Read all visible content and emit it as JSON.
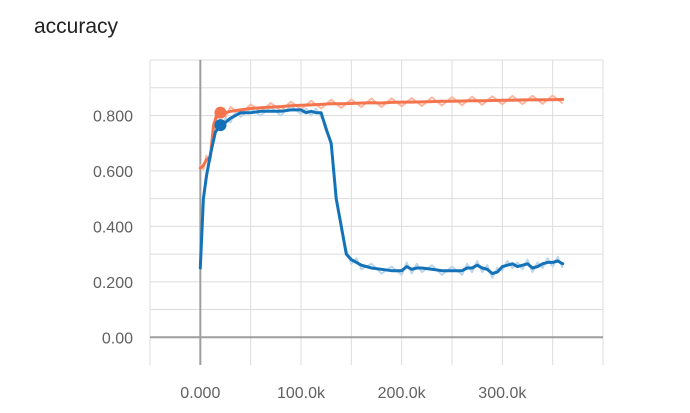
{
  "chart_data": {
    "type": "line",
    "title": "accuracy",
    "xlabel": "",
    "ylabel": "",
    "xlim": [
      -50000,
      400000
    ],
    "ylim": [
      -0.1,
      1.0
    ],
    "x_ticks": [
      0,
      100000,
      200000,
      300000
    ],
    "x_tick_labels": [
      "0.000",
      "100.0k",
      "200.0k",
      "300.0k"
    ],
    "y_ticks": [
      0.0,
      0.2,
      0.4,
      0.6,
      0.8
    ],
    "y_tick_labels": [
      "0.00",
      "0.200",
      "0.400",
      "0.600",
      "0.800"
    ],
    "grid": true,
    "legend": "none",
    "colors": {
      "orange": "#f4744d",
      "orange_raw": "#f9b9a3",
      "blue": "#1473b8",
      "blue_raw": "#bcd6ea",
      "grid": "#dddddd",
      "axis": "#9e9e9e"
    },
    "series": [
      {
        "color": "#f4744d",
        "x": [
          0,
          3000,
          6000,
          10000,
          13000,
          16000,
          20000,
          25000,
          30000,
          40000,
          50000,
          60000,
          70000,
          80000,
          90000,
          100000,
          110000,
          120000,
          130000,
          140000,
          150000,
          160000,
          170000,
          180000,
          190000,
          200000,
          210000,
          220000,
          230000,
          240000,
          250000,
          260000,
          270000,
          280000,
          290000,
          300000,
          310000,
          320000,
          330000,
          340000,
          350000,
          360000
        ],
        "y": [
          0.61,
          0.62,
          0.64,
          0.65,
          0.76,
          0.8,
          0.81,
          0.81,
          0.815,
          0.82,
          0.825,
          0.828,
          0.83,
          0.832,
          0.835,
          0.837,
          0.838,
          0.84,
          0.842,
          0.842,
          0.843,
          0.845,
          0.846,
          0.845,
          0.847,
          0.848,
          0.848,
          0.849,
          0.85,
          0.851,
          0.851,
          0.852,
          0.853,
          0.853,
          0.854,
          0.855,
          0.855,
          0.856,
          0.856,
          0.857,
          0.857,
          0.858
        ]
      },
      {
        "color": "#1473b8",
        "x": [
          0,
          3000,
          6000,
          10000,
          15000,
          20000,
          25000,
          30000,
          35000,
          40000,
          50000,
          60000,
          70000,
          80000,
          90000,
          100000,
          105000,
          110000,
          115000,
          120000,
          125000,
          130000,
          135000,
          140000,
          145000,
          150000,
          155000,
          160000,
          170000,
          180000,
          190000,
          200000,
          205000,
          210000,
          215000,
          220000,
          230000,
          240000,
          250000,
          260000,
          265000,
          270000,
          275000,
          280000,
          285000,
          290000,
          295000,
          300000,
          305000,
          310000,
          315000,
          320000,
          325000,
          330000,
          335000,
          340000,
          345000,
          350000,
          355000,
          360000
        ],
        "y": [
          0.25,
          0.5,
          0.58,
          0.66,
          0.74,
          0.765,
          0.775,
          0.79,
          0.8,
          0.81,
          0.81,
          0.815,
          0.815,
          0.815,
          0.82,
          0.82,
          0.81,
          0.815,
          0.81,
          0.81,
          0.75,
          0.7,
          0.5,
          0.4,
          0.3,
          0.28,
          0.27,
          0.26,
          0.25,
          0.245,
          0.24,
          0.24,
          0.255,
          0.245,
          0.25,
          0.25,
          0.245,
          0.24,
          0.24,
          0.24,
          0.25,
          0.25,
          0.26,
          0.25,
          0.245,
          0.23,
          0.235,
          0.255,
          0.26,
          0.265,
          0.255,
          0.26,
          0.265,
          0.25,
          0.255,
          0.265,
          0.27,
          0.27,
          0.275,
          0.265
        ]
      }
    ],
    "highlight_points": [
      {
        "x": 20000,
        "y": 0.765,
        "color": "#1473b8"
      }
    ]
  }
}
